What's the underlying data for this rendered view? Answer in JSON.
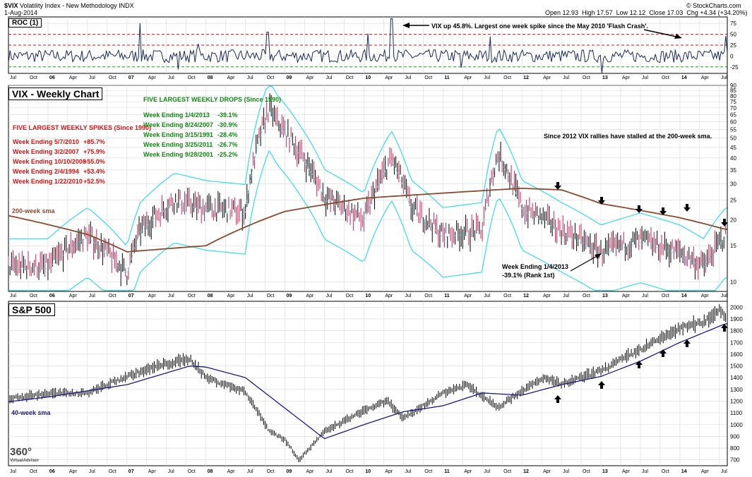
{
  "header": {
    "symbol": "$VIX",
    "description": "Volatility Index - New Methodology INDX",
    "date": "1-Aug-2014",
    "open_label": "Open",
    "open": "12.93",
    "high_label": "High",
    "high": "17.57",
    "low_label": "Low",
    "low": "12.12",
    "close_label": "Close",
    "close": "17.03",
    "chg_label": "Chg",
    "chg": "+4.34 (+34.20%)",
    "credit": "© StockCharts.com"
  },
  "panels": {
    "roc_title": "ROC (1)",
    "vix_title": "VIX - Weekly Chart",
    "spx_title": "S&P 500"
  },
  "annotations": {
    "roc_note": "VIX up 45.8%. Largest one week spike since the May 2010 'Flash Crash'.",
    "spikes_title": "FIVE LARGEST WEEKLY SPIKES (Since 1990)",
    "spikes": [
      {
        "week": "Week Ending 5/7/2010",
        "value": "+85.7%"
      },
      {
        "week": "Week Ending 3/2/2007",
        "value": "+75.9%"
      },
      {
        "week": "Week Ending 10/10/2008",
        "value": "+55.0%"
      },
      {
        "week": "Week Ending 2/4/1994",
        "value": "+53.4%"
      },
      {
        "week": "Week Ending 1/22/2010",
        "value": "+52.5%"
      }
    ],
    "drops_title": "FIVE LARGEST WEEKLY DROPS (Since 1990)",
    "drops": [
      {
        "week": "Week Ending 1/4/2013",
        "value": "-39.1%"
      },
      {
        "week": "Week Ending 8/24/2007",
        "value": "-30.9%"
      },
      {
        "week": "Week Ending 3/15/1991",
        "value": "-28.4%"
      },
      {
        "week": "Week Ending 3/25/2011",
        "value": "-26.7%"
      },
      {
        "week": "Week Ending 9/28/2001",
        "value": "-25.2%"
      }
    ],
    "stall_note": "Since 2012 VIX rallies have stalled at the 200-week sma.",
    "sma200_label": "200-week sma",
    "drop_note_line1": "Week Ending 1/4/2013",
    "drop_note_line2": "-39.1% (Rank 1st)",
    "sma40_label": "40-week sma",
    "logo_text": "360°",
    "logo_sub": "VirtualAdvisor"
  },
  "colors": {
    "up_bar": "#000000",
    "down_bar": "#cc2255",
    "sma200": "#8b4a2b",
    "bollinger": "#33dde8",
    "sma40": "#1a1a8c",
    "roc_line": "#1a2a5a",
    "ref_red": "#dd1111",
    "ref_green": "#11aa11",
    "grid": "#d8d8d8"
  },
  "chart_data": [
    {
      "type": "line",
      "name": "ROC (1)",
      "y_ticks": [
        -25,
        0,
        25,
        50,
        75
      ],
      "ylim": [
        -40,
        90
      ],
      "reference_lines": [
        {
          "value": 50,
          "style": "red dashed"
        },
        {
          "value": 25,
          "style": "red dashed"
        },
        {
          "value": -25,
          "style": "green dashed"
        }
      ],
      "spikes": [
        {
          "x": 2007.17,
          "value": 76
        },
        {
          "x": 2007.9,
          "value": 28
        },
        {
          "x": 2008.78,
          "value": 55
        },
        {
          "x": 2010.05,
          "value": 52
        },
        {
          "x": 2010.35,
          "value": 86
        },
        {
          "x": 2011.6,
          "value": 45
        },
        {
          "x": 2014.58,
          "value": 46
        },
        {
          "x": 2013.01,
          "value": -39
        },
        {
          "x": 2007.65,
          "value": -31
        },
        {
          "x": 2011.23,
          "value": -27
        }
      ]
    },
    {
      "type": "line",
      "name": "VIX - Weekly Chart",
      "ylim": [
        9,
        90
      ],
      "scale": "log",
      "y_ticks": [
        10,
        15,
        20,
        25,
        30,
        35,
        40,
        45,
        50,
        55,
        60,
        65,
        70,
        75,
        80,
        85,
        90
      ],
      "x": [
        2005.5,
        2006.0,
        2006.5,
        2007.0,
        2007.17,
        2007.6,
        2008.0,
        2008.5,
        2008.8,
        2008.9,
        2009.2,
        2009.5,
        2010.0,
        2010.35,
        2010.6,
        2011.0,
        2011.5,
        2011.7,
        2012.0,
        2012.5,
        2013.0,
        2013.5,
        2014.0,
        2014.3,
        2014.58
      ],
      "close": [
        12,
        12,
        17,
        11,
        18,
        25,
        23,
        22,
        70,
        60,
        42,
        26,
        20,
        40,
        23,
        17,
        18,
        42,
        23,
        18,
        14,
        16,
        14,
        12,
        17
      ],
      "series": [
        {
          "name": "200-week sma",
          "x": [
            2005.5,
            2006.5,
            2007.0,
            2008.0,
            2009.0,
            2010.0,
            2011.0,
            2012.0,
            2012.5,
            2013.0,
            2014.0,
            2014.58
          ],
          "values": [
            21,
            17,
            14,
            15,
            22,
            25.5,
            27,
            28.5,
            28,
            24,
            20.5,
            18
          ]
        }
      ]
    },
    {
      "type": "line",
      "name": "S&P 500",
      "ylim": [
        650,
        2050
      ],
      "y_ticks": [
        700,
        800,
        900,
        1000,
        1100,
        1200,
        1300,
        1400,
        1500,
        1600,
        1700,
        1800,
        1900,
        2000
      ],
      "x": [
        2005.5,
        2006.0,
        2006.5,
        2007.0,
        2007.4,
        2007.8,
        2008.0,
        2008.5,
        2008.8,
        2009.0,
        2009.18,
        2009.5,
        2010.0,
        2010.3,
        2010.5,
        2011.0,
        2011.3,
        2011.7,
        2012.0,
        2012.3,
        2012.5,
        2013.0,
        2013.5,
        2014.0,
        2014.3,
        2014.5,
        2014.58
      ],
      "close": [
        1220,
        1265,
        1270,
        1410,
        1500,
        1560,
        1400,
        1280,
        950,
        870,
        700,
        940,
        1120,
        1200,
        1050,
        1270,
        1340,
        1150,
        1290,
        1400,
        1340,
        1460,
        1640,
        1820,
        1870,
        1980,
        1925
      ],
      "series": [
        {
          "name": "40-week sma",
          "x": [
            2005.5,
            2006.0,
            2007.0,
            2007.8,
            2008.0,
            2008.5,
            2009.0,
            2009.5,
            2010.0,
            2010.5,
            2011.0,
            2011.5,
            2012.0,
            2012.5,
            2013.0,
            2013.5,
            2014.0,
            2014.58
          ],
          "values": [
            1195,
            1235,
            1340,
            1500,
            1490,
            1400,
            1140,
            880,
            1000,
            1110,
            1160,
            1270,
            1250,
            1340,
            1410,
            1540,
            1700,
            1860
          ]
        }
      ]
    }
  ],
  "x_axis": {
    "tick_labels": [
      "Jul",
      "Oct",
      "06",
      "Apr",
      "Jul",
      "Oct",
      "07",
      "Apr",
      "Jul",
      "Oct",
      "08",
      "Apr",
      "Jul",
      "Oct",
      "09",
      "Apr",
      "Jul",
      "Oct",
      "10",
      "Apr",
      "Jul",
      "Oct",
      "11",
      "Apr",
      "Jul",
      "Oct",
      "12",
      "Apr",
      "Jul",
      "Oct",
      "13",
      "Apr",
      "Jul",
      "Oct",
      "14",
      "Apr",
      "Jul"
    ]
  }
}
